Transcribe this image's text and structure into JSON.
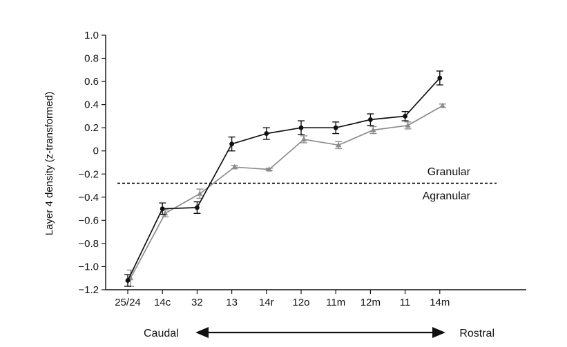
{
  "chart_data": {
    "type": "line",
    "ylabel": "Layer 4 density (z-transformed)",
    "xlabel": "",
    "categories": [
      "25/24",
      "14c",
      "32",
      "13",
      "14r",
      "12o",
      "11m",
      "12m",
      "11",
      "14m"
    ],
    "ylim": [
      -1.2,
      1.0
    ],
    "yticks": [
      1.0,
      0.8,
      0.6,
      0.4,
      0.2,
      0,
      -0.2,
      -0.4,
      -0.6,
      -0.8,
      -1.0,
      -1.2
    ],
    "ytick_labels": [
      "1.0",
      "0.8",
      "0.6",
      "0.4",
      "0.2",
      "0",
      "−0.2",
      "−0.4",
      "−0.6",
      "−0.8",
      "−1.0",
      "−1.2"
    ],
    "grid": false,
    "series": [
      {
        "color": "#111111",
        "marker": "circle",
        "values": [
          -1.12,
          -0.5,
          -0.49,
          0.06,
          0.15,
          0.2,
          0.2,
          0.27,
          0.3,
          0.63
        ],
        "errors": [
          0.05,
          0.05,
          0.05,
          0.06,
          0.05,
          0.06,
          0.05,
          0.05,
          0.04,
          0.06
        ]
      },
      {
        "color": "#8c8c8c",
        "marker": "triangle",
        "values": [
          -1.1,
          -0.54,
          -0.37,
          -0.14,
          -0.16,
          0.1,
          0.05,
          0.18,
          0.22,
          0.39
        ],
        "errors": [
          0.07,
          0.03,
          0.04,
          0.015,
          0.01,
          0.03,
          0.03,
          0.03,
          0.03,
          0.015
        ]
      }
    ],
    "threshold": {
      "y": -0.28,
      "style": "dashed",
      "label_above": "Granular",
      "label_below": "Agranular"
    },
    "direction": {
      "left_label": "Caudal",
      "right_label": "Rostral"
    }
  }
}
